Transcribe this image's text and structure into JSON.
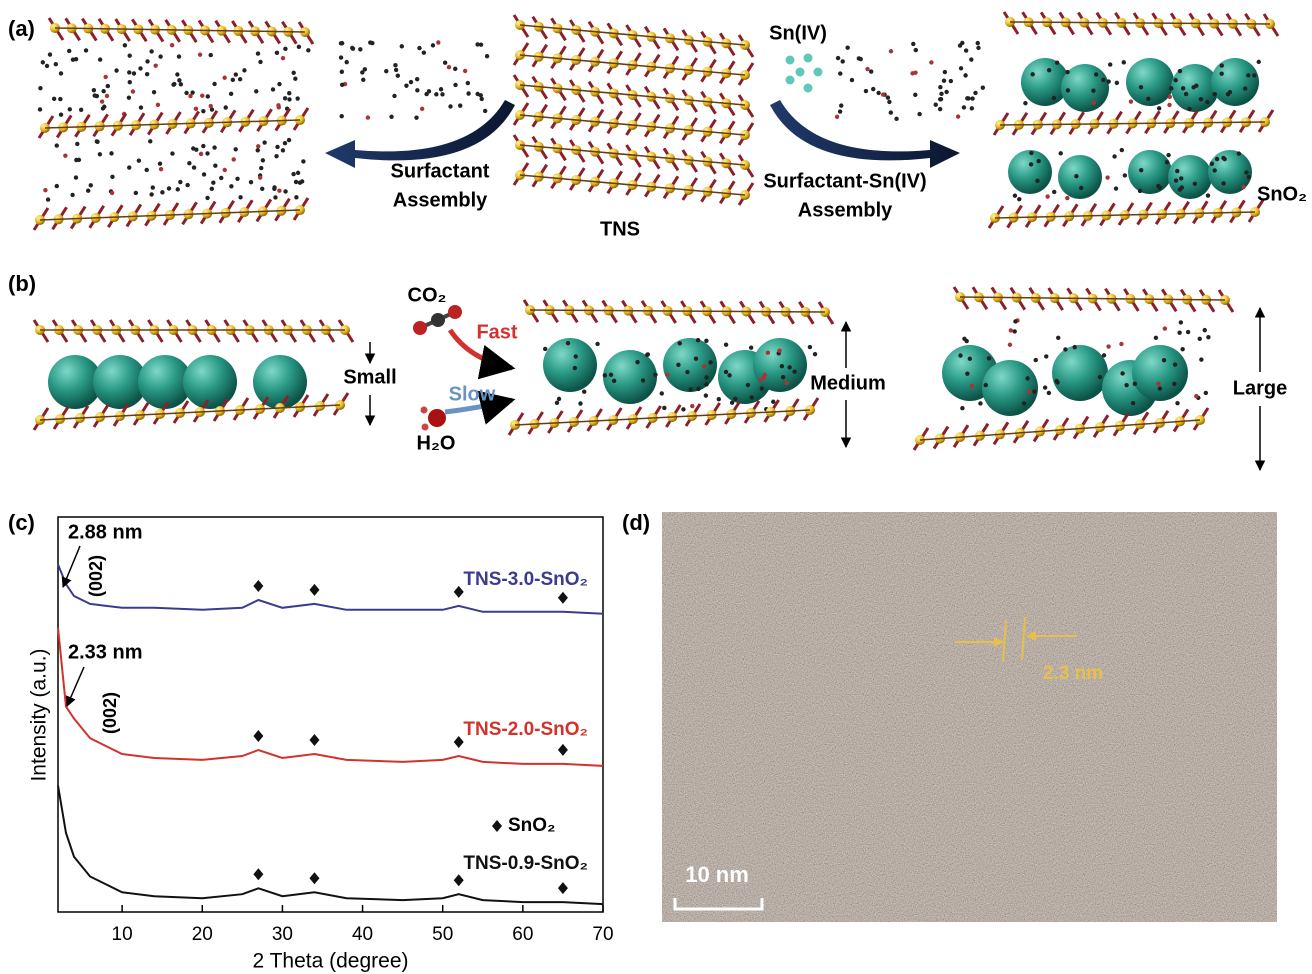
{
  "panel_a": {
    "label": "(a)",
    "left_arrow": [
      "Surfactant",
      "Assembly"
    ],
    "center": "TNS",
    "ion": "Sn(IV)",
    "right_arrow": [
      "Surfactant-Sn(IV)",
      "Assembly"
    ],
    "product": "SnO₂"
  },
  "panel_b": {
    "label": "(b)",
    "gas": "CO₂",
    "fast": "Fast",
    "slow": "Slow",
    "water": "H₂O",
    "sizes": [
      "Small",
      "Medium",
      "Large"
    ]
  },
  "chart_data": {
    "type": "line",
    "panel_label": "(c)",
    "xlabel": "2 Theta (degree)",
    "ylabel": "Intensity (a.u.)",
    "x": [
      2,
      3,
      4,
      6,
      8,
      10,
      14,
      20,
      25,
      27,
      30,
      34,
      38,
      45,
      50,
      52,
      55,
      60,
      65,
      70
    ],
    "series": [
      {
        "name": "TNS-3.0-SnO₂",
        "color": "#3b3b8f",
        "values": [
          88,
          83,
          80,
          78,
          77.5,
          77,
          77,
          76.5,
          77,
          79,
          77,
          78,
          76.5,
          76.5,
          76.5,
          77.5,
          76,
          76,
          76,
          75.5
        ]
      },
      {
        "name": "TNS-2.0-SnO₂",
        "color": "#d3322c",
        "values": [
          72,
          52,
          49,
          44,
          42,
          40,
          39,
          38.5,
          39.5,
          41,
          39,
          40,
          38.5,
          38,
          38.5,
          39.5,
          38,
          37.5,
          37.5,
          37
        ]
      },
      {
        "name": "TNS-0.9-SnO₂",
        "color": "#111111",
        "values": [
          32,
          20,
          14,
          9,
          7,
          5,
          4,
          3.5,
          4.5,
          6,
          4,
          5,
          3.5,
          3,
          3.5,
          4.5,
          3,
          2.5,
          2.5,
          2
        ]
      }
    ],
    "peak_x": [
      27,
      34,
      52,
      65
    ],
    "marker_label": "SnO₂",
    "annotations": [
      "2.88 nm",
      "(002)",
      "2.33 nm",
      "(002)"
    ],
    "xlim": [
      2,
      70
    ],
    "xticks": [
      10,
      20,
      30,
      40,
      50,
      60,
      70
    ],
    "ylim": [
      0,
      100
    ]
  },
  "panel_d": {
    "label": "(d)",
    "spacing": "2.3 nm",
    "scale_bar": "10 nm"
  }
}
